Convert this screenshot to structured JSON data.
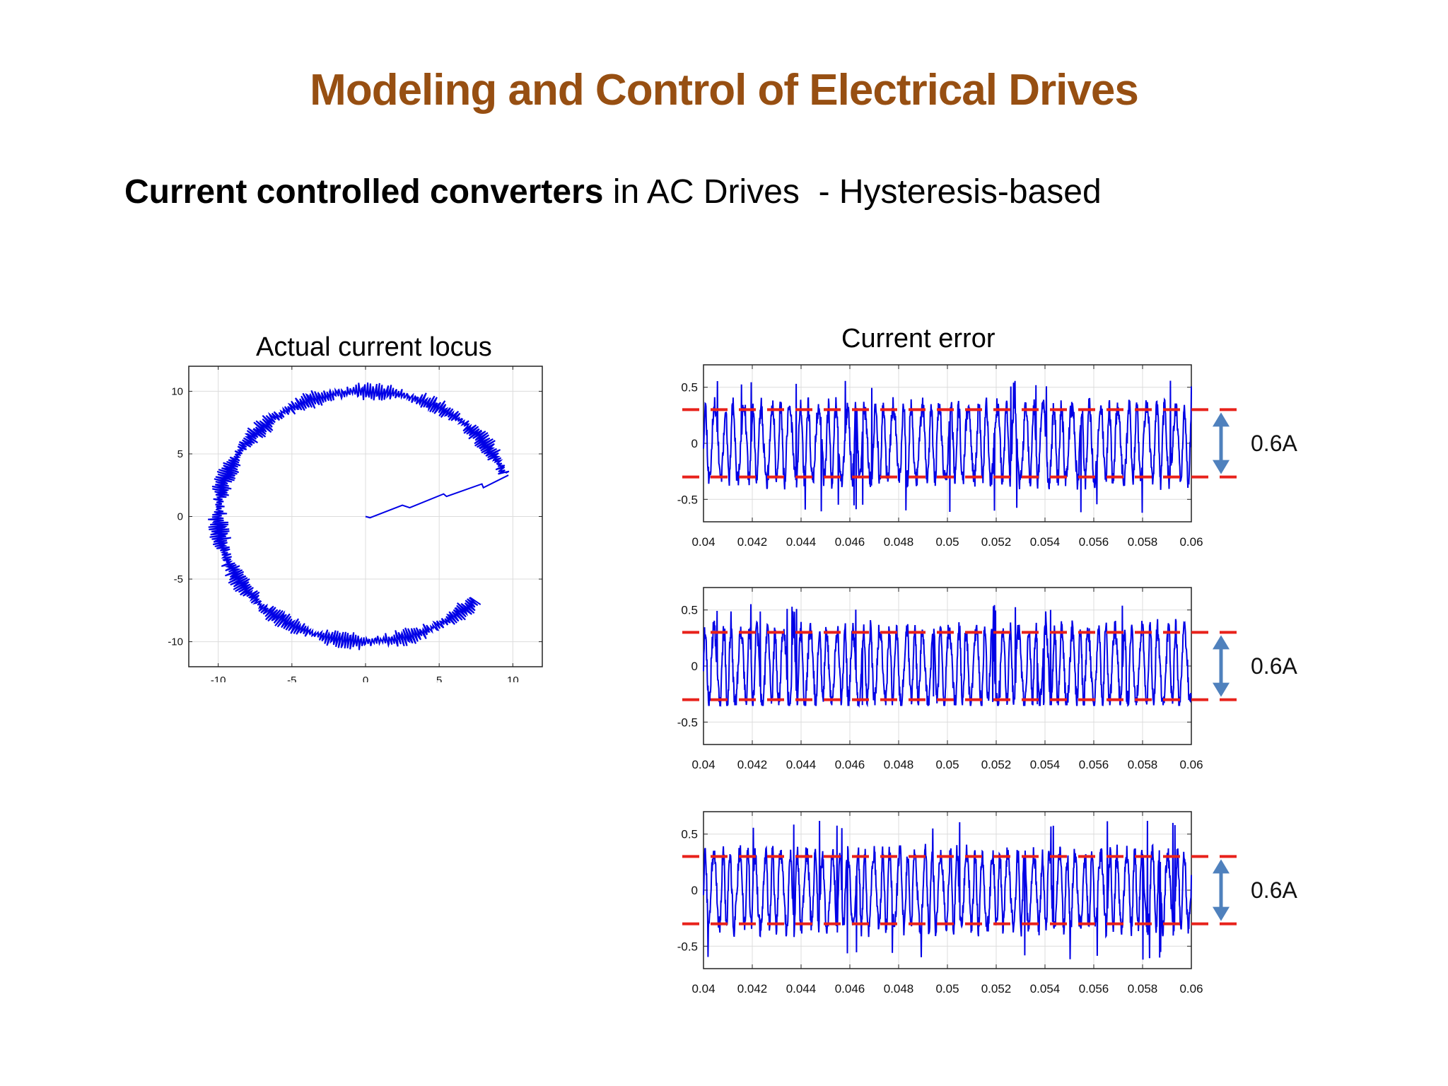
{
  "slide": {
    "title": "Modeling and Control of Electrical Drives",
    "subtitle_bold": "Current controlled converters",
    "subtitle_rest": " in AC Drives  - Hysteresis-based"
  },
  "colors": {
    "title": "#974F12",
    "trace": "#0000E6",
    "band": "#E8221B",
    "arrow": "#4F81BD",
    "grid": "#DCDCDC"
  },
  "chart_data": [
    {
      "type": "line",
      "title": "Actual current locus",
      "xlim": [
        -12,
        12
      ],
      "ylim": [
        -12,
        12
      ],
      "xticks": [
        -10,
        -5,
        0,
        5,
        10
      ],
      "yticks": [
        10,
        5,
        0,
        -5,
        -10
      ],
      "grid": true,
      "startup_segment": [
        [
          0,
          0
        ],
        [
          0.3,
          -0.1
        ],
        [
          2.5,
          0.9
        ],
        [
          3,
          0.7
        ],
        [
          5.3,
          1.8
        ],
        [
          5.5,
          1.6
        ],
        [
          7.9,
          2.6
        ],
        [
          8,
          2.3
        ],
        [
          9.7,
          3.3
        ]
      ],
      "locus": {
        "radius": 10,
        "start_angle_deg": 20,
        "end_angle_deg": 318,
        "ripple": 0.45
      }
    },
    {
      "type": "line",
      "title": "Current error",
      "xlim": [
        0.04,
        0.06
      ],
      "ylim": [
        -0.7,
        0.7
      ],
      "xticks": [
        "0.04",
        "0.042",
        "0.044",
        "0.046",
        "0.048",
        "0.05",
        "0.052",
        "0.054",
        "0.056",
        "0.058",
        "0.06"
      ],
      "yticks": [
        "0.5",
        "0",
        "-0.5"
      ],
      "grid": true,
      "hysteresis_band": [
        -0.3,
        0.3
      ],
      "band_label": "0.6A",
      "waveform": {
        "cycles": 52,
        "amplitude": 0.33,
        "peak_min": -0.62,
        "peak_max": 0.56
      }
    },
    {
      "type": "line",
      "title": "",
      "xlim": [
        0.04,
        0.06
      ],
      "ylim": [
        -0.7,
        0.7
      ],
      "xticks": [
        "0.04",
        "0.042",
        "0.044",
        "0.046",
        "0.048",
        "0.05",
        "0.052",
        "0.054",
        "0.056",
        "0.058",
        "0.06"
      ],
      "yticks": [
        "0.5",
        "0",
        "-0.5"
      ],
      "grid": true,
      "hysteresis_band": [
        -0.3,
        0.3
      ],
      "band_label": "0.6A",
      "waveform": {
        "cycles": 56,
        "amplitude": 0.33,
        "peak_min": -0.35,
        "peak_max": 0.56
      }
    },
    {
      "type": "line",
      "title": "",
      "xlim": [
        0.04,
        0.06
      ],
      "ylim": [
        -0.7,
        0.7
      ],
      "xticks": [
        "0.04",
        "0.042",
        "0.044",
        "0.046",
        "0.048",
        "0.05",
        "0.052",
        "0.054",
        "0.056",
        "0.058",
        "0.06"
      ],
      "yticks": [
        "0.5",
        "0",
        "-0.5"
      ],
      "grid": true,
      "hysteresis_band": [
        -0.3,
        0.3
      ],
      "band_label": "0.6A",
      "waveform": {
        "cycles": 58,
        "amplitude": 0.33,
        "peak_min": -0.62,
        "peak_max": 0.62
      }
    }
  ]
}
